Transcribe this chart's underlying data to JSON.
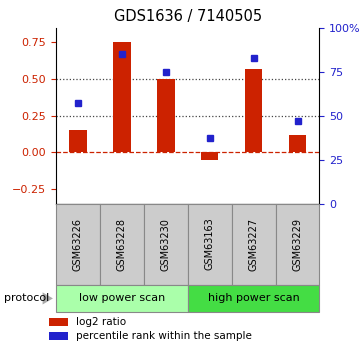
{
  "title": "GDS1636 / 7140505",
  "samples": [
    "GSM63226",
    "GSM63228",
    "GSM63230",
    "GSM63163",
    "GSM63227",
    "GSM63229"
  ],
  "log2_ratio": [
    0.15,
    0.75,
    0.5,
    -0.05,
    0.57,
    0.12
  ],
  "percentile_rank": [
    57,
    85,
    75,
    37,
    83,
    47
  ],
  "bar_color": "#cc2200",
  "dot_color": "#2222cc",
  "ylim_left": [
    -0.35,
    0.85
  ],
  "ylim_right": [
    0,
    100
  ],
  "yticks_left": [
    -0.25,
    0.0,
    0.25,
    0.5,
    0.75
  ],
  "yticks_right": [
    0,
    25,
    50,
    75,
    100
  ],
  "ytick_labels_right": [
    "0",
    "25",
    "50",
    "75",
    "100%"
  ],
  "hlines": [
    0.0,
    0.25,
    0.5
  ],
  "hline_styles": [
    "dashed",
    "dotted",
    "dotted"
  ],
  "hline_colors": [
    "#cc2200",
    "#444444",
    "#444444"
  ],
  "group_labels": [
    "low power scan",
    "high power scan"
  ],
  "group_colors": [
    "#aaffaa",
    "#44dd44"
  ],
  "group_sizes": [
    3,
    3
  ],
  "protocol_label": "protocol",
  "legend_labels": [
    "log2 ratio",
    "percentile rank within the sample"
  ],
  "legend_colors": [
    "#cc2200",
    "#2222cc"
  ],
  "bg_color": "#ffffff",
  "tick_color_left": "#cc2200",
  "tick_color_right": "#2222cc",
  "bar_width": 0.4
}
